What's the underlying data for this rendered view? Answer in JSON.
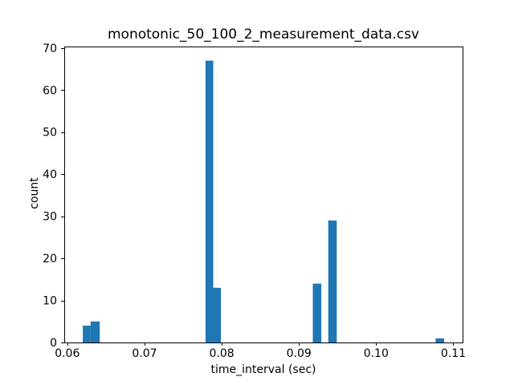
{
  "chart_data": {
    "type": "bar",
    "subtype": "histogram",
    "title": "monotonic_50_100_2_measurement_data.csv",
    "xlabel": "time_interval (sec)",
    "ylabel": "count",
    "bar_color": "#1f77b4",
    "axis_color": "#000000",
    "background_color": "#ffffff",
    "grid": false,
    "legend": null,
    "xlim": [
      0.0596,
      0.1112
    ],
    "ylim": [
      0,
      70.35
    ],
    "xticks": [
      0.06,
      0.07,
      0.08,
      0.09,
      0.1,
      0.11
    ],
    "xtick_labels": [
      "0.06",
      "0.07",
      "0.08",
      "0.09",
      "0.10",
      "0.11"
    ],
    "yticks": [
      0,
      10,
      20,
      30,
      40,
      50,
      60,
      70
    ],
    "ytick_labels": [
      "0",
      "10",
      "20",
      "30",
      "40",
      "50",
      "60",
      "70"
    ],
    "bins": [
      {
        "x0": 0.062,
        "x1": 0.063,
        "count": 4
      },
      {
        "x0": 0.063,
        "x1": 0.0642,
        "count": 5
      },
      {
        "x0": 0.0779,
        "x1": 0.0789,
        "count": 67
      },
      {
        "x0": 0.0789,
        "x1": 0.0799,
        "count": 13
      },
      {
        "x0": 0.0918,
        "x1": 0.0929,
        "count": 14
      },
      {
        "x0": 0.0938,
        "x1": 0.0949,
        "count": 29
      },
      {
        "x0": 0.1077,
        "x1": 0.1088,
        "count": 1
      }
    ]
  }
}
